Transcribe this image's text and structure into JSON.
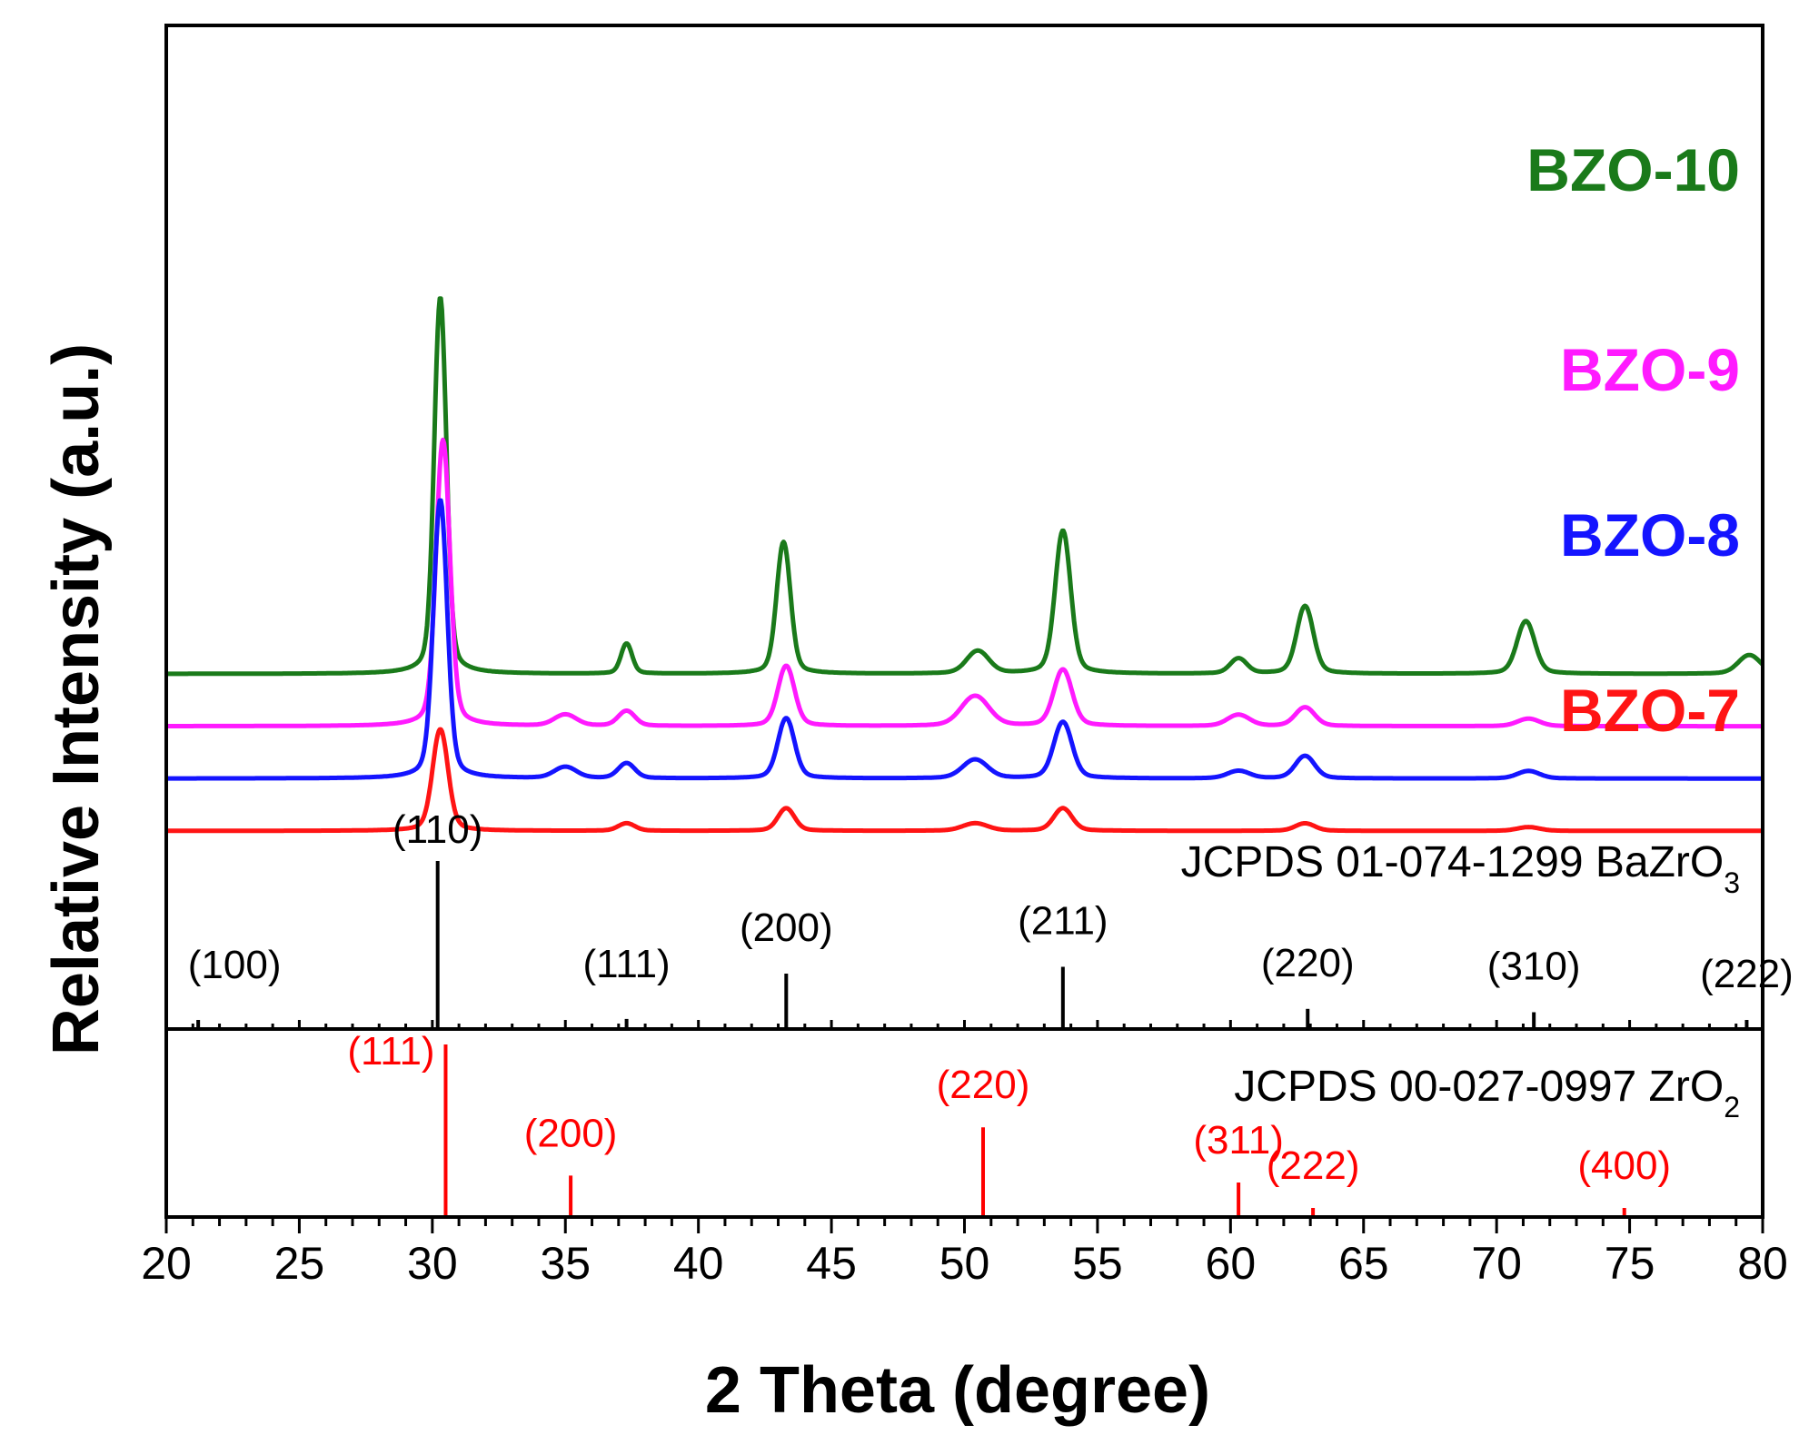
{
  "chart_data": {
    "type": "line",
    "xlabel": "2 Theta (degree)",
    "ylabel": "Relative Intensity (a.u.)",
    "xlim": [
      20,
      80
    ],
    "x_ticks": [
      20,
      25,
      30,
      35,
      40,
      45,
      50,
      55,
      60,
      65,
      70,
      75,
      80
    ],
    "grid": false,
    "series": [
      {
        "name": "BZO-10",
        "color": "#1a7a1a",
        "baseline": 0.5,
        "peaks": [
          {
            "x": 30.3,
            "height": 1.0,
            "width": 0.22
          },
          {
            "x": 37.3,
            "height": 0.08,
            "width": 0.2
          },
          {
            "x": 43.2,
            "height": 0.35,
            "width": 0.25
          },
          {
            "x": 50.5,
            "height": 0.06,
            "width": 0.4
          },
          {
            "x": 53.7,
            "height": 0.38,
            "width": 0.28
          },
          {
            "x": 60.3,
            "height": 0.04,
            "width": 0.3
          },
          {
            "x": 62.8,
            "height": 0.18,
            "width": 0.3
          },
          {
            "x": 71.1,
            "height": 0.14,
            "width": 0.32
          },
          {
            "x": 79.5,
            "height": 0.05,
            "width": 0.4
          }
        ]
      },
      {
        "name": "BZO-9",
        "color": "#ff1aff",
        "baseline": 0.4,
        "peaks": [
          {
            "x": 30.4,
            "height": 0.76,
            "width": 0.25
          },
          {
            "x": 35.0,
            "height": 0.03,
            "width": 0.4
          },
          {
            "x": 37.3,
            "height": 0.04,
            "width": 0.3
          },
          {
            "x": 43.3,
            "height": 0.16,
            "width": 0.3
          },
          {
            "x": 50.4,
            "height": 0.08,
            "width": 0.5
          },
          {
            "x": 53.7,
            "height": 0.15,
            "width": 0.33
          },
          {
            "x": 60.3,
            "height": 0.03,
            "width": 0.4
          },
          {
            "x": 62.8,
            "height": 0.05,
            "width": 0.35
          },
          {
            "x": 71.2,
            "height": 0.02,
            "width": 0.4
          }
        ]
      },
      {
        "name": "BZO-8",
        "color": "#1414ff",
        "baseline": 0.3,
        "peaks": [
          {
            "x": 30.3,
            "height": 0.74,
            "width": 0.25
          },
          {
            "x": 35.0,
            "height": 0.03,
            "width": 0.4
          },
          {
            "x": 37.3,
            "height": 0.04,
            "width": 0.3
          },
          {
            "x": 43.3,
            "height": 0.16,
            "width": 0.3
          },
          {
            "x": 50.4,
            "height": 0.05,
            "width": 0.45
          },
          {
            "x": 53.7,
            "height": 0.15,
            "width": 0.33
          },
          {
            "x": 60.3,
            "height": 0.02,
            "width": 0.4
          },
          {
            "x": 62.8,
            "height": 0.06,
            "width": 0.35
          },
          {
            "x": 71.2,
            "height": 0.02,
            "width": 0.4
          }
        ]
      },
      {
        "name": "BZO-7",
        "color": "#ff1414",
        "baseline": 0.2,
        "peaks": [
          {
            "x": 30.3,
            "height": 0.27,
            "width": 0.28
          },
          {
            "x": 37.3,
            "height": 0.02,
            "width": 0.3
          },
          {
            "x": 43.3,
            "height": 0.06,
            "width": 0.3
          },
          {
            "x": 50.4,
            "height": 0.02,
            "width": 0.45
          },
          {
            "x": 53.7,
            "height": 0.06,
            "width": 0.33
          },
          {
            "x": 62.8,
            "height": 0.02,
            "width": 0.35
          },
          {
            "x": 71.2,
            "height": 0.01,
            "width": 0.4
          }
        ]
      }
    ],
    "references": [
      {
        "title": "JCPDS 01-074-1299 BaZrO",
        "title_sub": "3",
        "color": "#000000",
        "lines": [
          {
            "x": 21.2,
            "intensity": 0.03,
            "hkl": "(100)"
          },
          {
            "x": 30.2,
            "intensity": 1.0,
            "hkl": "(110)"
          },
          {
            "x": 37.3,
            "intensity": 0.06,
            "hkl": "(111)"
          },
          {
            "x": 43.3,
            "intensity": 0.33,
            "hkl": "(200)"
          },
          {
            "x": 53.7,
            "intensity": 0.37,
            "hkl": "(211)"
          },
          {
            "x": 62.9,
            "intensity": 0.12,
            "hkl": "(220)"
          },
          {
            "x": 71.4,
            "intensity": 0.1,
            "hkl": "(310)"
          },
          {
            "x": 79.4,
            "intensity": 0.03,
            "hkl": "(222)"
          }
        ]
      },
      {
        "title": "JCPDS 00-027-0997 ZrO",
        "title_sub": "2",
        "color": "#ff0000",
        "lines": [
          {
            "x": 30.5,
            "intensity": 1.0,
            "hkl": "(111)"
          },
          {
            "x": 35.2,
            "intensity": 0.24,
            "hkl": "(200)"
          },
          {
            "x": 50.7,
            "intensity": 0.52,
            "hkl": "(220)"
          },
          {
            "x": 60.3,
            "intensity": 0.2,
            "hkl": "(311)"
          },
          {
            "x": 63.1,
            "intensity": 0.03,
            "hkl": "(222)"
          },
          {
            "x": 74.8,
            "intensity": 0.02,
            "hkl": "(400)"
          }
        ]
      }
    ]
  }
}
